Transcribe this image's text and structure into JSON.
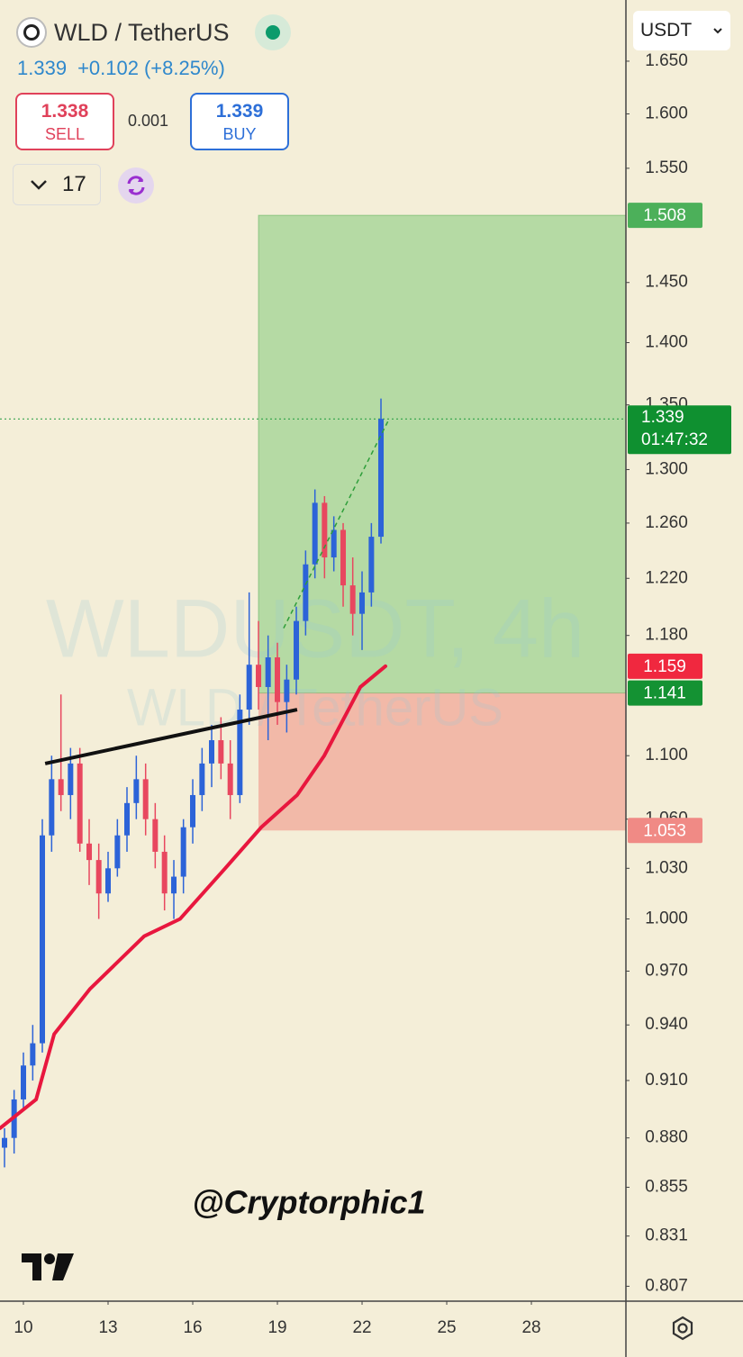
{
  "header": {
    "symbol": "WLD / TetherUS",
    "price": "1.339",
    "change": "+0.102",
    "change_pct": "(+8.25%)",
    "sell_price": "1.338",
    "sell_label": "SELL",
    "spread": "0.001",
    "buy_price": "1.339",
    "buy_label": "BUY",
    "interval_count": "17",
    "currency": "USDT"
  },
  "watermark": {
    "line1": "WLDUSDT, 4h",
    "line2": "WLD / TetherUS"
  },
  "credit": "@Cryptorphic1",
  "chart_data": {
    "type": "candlestick",
    "log_scale": true,
    "grid": false,
    "up_color": "#2c63d8",
    "down_color": "#e8475f",
    "xlim": [
      9.17,
      31.35
    ],
    "xticks": [
      10,
      13,
      16,
      19,
      22,
      25,
      28
    ],
    "ylim": [
      0.8,
      1.71
    ],
    "yticks": [
      {
        "value": 0.807,
        "label": "0.807"
      },
      {
        "value": 0.831,
        "label": "0.831"
      },
      {
        "value": 0.855,
        "label": "0.855"
      },
      {
        "value": 0.88,
        "label": "0.880"
      },
      {
        "value": 0.91,
        "label": "0.910"
      },
      {
        "value": 0.94,
        "label": "0.940"
      },
      {
        "value": 0.97,
        "label": "0.970"
      },
      {
        "value": 1.0,
        "label": "1.000"
      },
      {
        "value": 1.03,
        "label": "1.030"
      },
      {
        "value": 1.06,
        "label": "1.060"
      },
      {
        "value": 1.1,
        "label": "1.100"
      },
      {
        "value": 1.18,
        "label": "1.180"
      },
      {
        "value": 1.22,
        "label": "1.220"
      },
      {
        "value": 1.26,
        "label": "1.260"
      },
      {
        "value": 1.3,
        "label": "1.300"
      },
      {
        "value": 1.35,
        "label": "1.350"
      },
      {
        "value": 1.4,
        "label": "1.400"
      },
      {
        "value": 1.45,
        "label": "1.450"
      },
      {
        "value": 1.55,
        "label": "1.550"
      },
      {
        "value": 1.6,
        "label": "1.600"
      },
      {
        "value": 1.65,
        "label": "1.650"
      }
    ],
    "x": [
      9.33,
      9.67,
      10.0,
      10.33,
      10.67,
      11.0,
      11.33,
      11.67,
      12.0,
      12.33,
      12.67,
      13.0,
      13.33,
      13.67,
      14.0,
      14.33,
      14.67,
      15.0,
      15.33,
      15.67,
      16.0,
      16.33,
      16.67,
      17.0,
      17.33,
      17.67,
      18.0,
      18.33,
      18.67,
      19.0,
      19.33,
      19.67,
      20.0,
      20.33,
      20.67,
      21.0,
      21.33,
      21.67,
      22.0,
      22.33,
      22.67
    ],
    "open": [
      0.875,
      0.88,
      0.9,
      0.918,
      0.93,
      1.05,
      1.085,
      1.075,
      1.095,
      1.045,
      1.035,
      1.015,
      1.03,
      1.05,
      1.07,
      1.085,
      1.06,
      1.04,
      1.015,
      1.025,
      1.055,
      1.075,
      1.095,
      1.11,
      1.095,
      1.075,
      1.13,
      1.16,
      1.145,
      1.165,
      1.135,
      1.15,
      1.19,
      1.23,
      1.275,
      1.235,
      1.255,
      1.215,
      1.195,
      1.21,
      1.25
    ],
    "high": [
      0.885,
      0.905,
      0.925,
      0.94,
      1.06,
      1.1,
      1.14,
      1.105,
      1.105,
      1.06,
      1.045,
      1.04,
      1.06,
      1.08,
      1.1,
      1.095,
      1.07,
      1.05,
      1.035,
      1.06,
      1.085,
      1.105,
      1.12,
      1.125,
      1.11,
      1.14,
      1.21,
      1.19,
      1.18,
      1.175,
      1.16,
      1.2,
      1.24,
      1.285,
      1.28,
      1.265,
      1.26,
      1.235,
      1.225,
      1.26,
      1.355
    ],
    "low": [
      0.865,
      0.872,
      0.895,
      0.91,
      0.925,
      1.04,
      1.065,
      1.06,
      1.04,
      1.02,
      1.0,
      1.01,
      1.025,
      1.04,
      1.06,
      1.05,
      1.03,
      1.005,
      1.0,
      1.015,
      1.045,
      1.065,
      1.08,
      1.085,
      1.06,
      1.07,
      1.12,
      1.13,
      1.11,
      1.12,
      1.115,
      1.14,
      1.18,
      1.22,
      1.22,
      1.225,
      1.2,
      1.18,
      1.17,
      1.2,
      1.245
    ],
    "close": [
      0.88,
      0.9,
      0.918,
      0.93,
      1.05,
      1.085,
      1.075,
      1.095,
      1.045,
      1.035,
      1.015,
      1.03,
      1.05,
      1.07,
      1.085,
      1.06,
      1.04,
      1.015,
      1.025,
      1.055,
      1.075,
      1.095,
      1.11,
      1.095,
      1.075,
      1.13,
      1.16,
      1.145,
      1.165,
      1.135,
      1.15,
      1.19,
      1.23,
      1.275,
      1.235,
      1.255,
      1.215,
      1.195,
      1.21,
      1.25,
      1.339
    ],
    "ma": {
      "color": "#e8173e",
      "x": [
        9.17,
        10.45,
        11.09,
        12.36,
        14.28,
        15.55,
        17.15,
        18.43,
        19.7,
        20.66,
        21.94,
        22.83
      ],
      "values": [
        0.885,
        0.9,
        0.935,
        0.96,
        0.99,
        1.0,
        1.03,
        1.055,
        1.075,
        1.1,
        1.145,
        1.159
      ],
      "last_value": 1.159
    },
    "trendline": {
      "color": "#111111",
      "x": [
        10.77,
        19.7
      ],
      "values": [
        1.095,
        1.13
      ]
    },
    "projection": {
      "color": "#2e9e3a",
      "x": [
        19.22,
        22.96
      ],
      "values": [
        1.185,
        1.339
      ]
    },
    "position": {
      "x_start": 18.33,
      "target": 1.508,
      "entry": 1.141,
      "stop": 1.053
    },
    "last_price": 1.339,
    "countdown": "01:47:32"
  }
}
